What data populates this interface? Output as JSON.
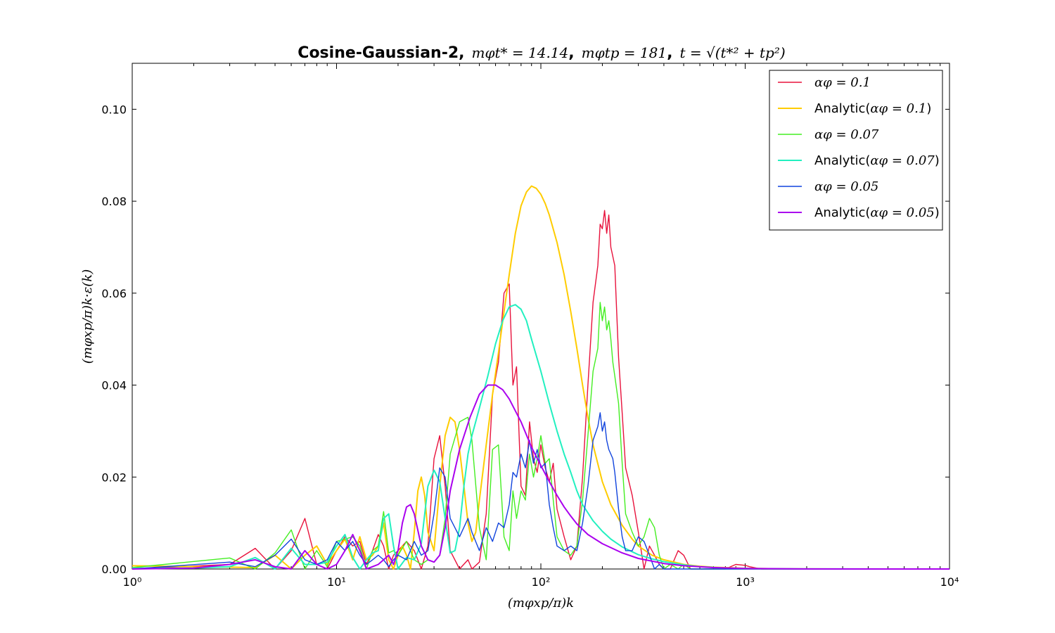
{
  "chart_data": {
    "type": "line",
    "title": {
      "bold": "Cosine-Gaussian-2,",
      "math1": "mφt* = 14.14",
      "sep1": ",",
      "math2": "mφtp = 181",
      "sep2": ",",
      "math3": "t = √(t*² + tp²)"
    },
    "xlabel": "(mφxp/π)k",
    "ylabel": "(mφxp/π)k·ε(k)",
    "xscale": "log",
    "xlim": [
      1,
      10000
    ],
    "ylim": [
      0,
      0.11
    ],
    "xticks": [
      "10⁰",
      "10¹",
      "10²",
      "10³",
      "10⁴"
    ],
    "yticks": [
      "0.00",
      "0.02",
      "0.04",
      "0.06",
      "0.08",
      "0.10"
    ],
    "legend_position": "top-right",
    "series": [
      {
        "name": "αφ = 0.1",
        "name_prefix": "",
        "name_math": "αφ = 0.1",
        "name_suffix": "",
        "color": "#e8123c",
        "width": 1.4,
        "x": [
          1,
          3,
          4,
          5,
          6,
          7,
          8,
          9,
          10,
          11,
          12,
          13,
          14,
          15,
          16,
          17,
          18,
          19,
          20,
          22,
          24,
          26,
          28,
          30,
          32,
          34,
          36,
          40,
          44,
          46,
          50,
          54,
          58,
          62,
          66,
          70,
          73,
          76,
          80,
          84,
          88,
          92,
          96,
          100,
          105,
          110,
          115,
          120,
          130,
          140,
          150,
          160,
          170,
          180,
          190,
          195,
          200,
          205,
          210,
          215,
          220,
          225,
          230,
          240,
          250,
          260,
          280,
          300,
          320,
          340,
          360,
          380,
          400,
          430,
          470,
          500,
          540,
          600,
          700,
          800,
          900,
          1000,
          1050,
          1200,
          2000,
          10000
        ],
        "y": [
          0.0,
          0.001,
          0.0045,
          0.0,
          0.004,
          0.011,
          0.001,
          0.0,
          0.004,
          0.007,
          0.005,
          0.006,
          0.001,
          0.004,
          0.0075,
          0.005,
          0.0,
          0.003,
          0.004,
          0.006,
          0.004,
          0.0,
          0.005,
          0.024,
          0.029,
          0.018,
          0.004,
          0.0,
          0.002,
          0.0,
          0.0015,
          0.012,
          0.038,
          0.045,
          0.06,
          0.062,
          0.04,
          0.044,
          0.018,
          0.016,
          0.032,
          0.024,
          0.021,
          0.027,
          0.022,
          0.019,
          0.023,
          0.013,
          0.007,
          0.002,
          0.005,
          0.02,
          0.04,
          0.058,
          0.066,
          0.075,
          0.074,
          0.078,
          0.073,
          0.077,
          0.07,
          0.068,
          0.066,
          0.046,
          0.034,
          0.022,
          0.016,
          0.008,
          0.0,
          0.005,
          0.003,
          0.001,
          0.0,
          0.0,
          0.004,
          0.003,
          0.0,
          0.0,
          0.0,
          0.0,
          0.001,
          0.0008,
          0.0005,
          0.0,
          0.0,
          0.0
        ]
      },
      {
        "name": "Analytic(αφ = 0.1)",
        "name_prefix": "Analytic(",
        "name_math": "αφ = 0.1",
        "name_suffix": ")",
        "color": "#ffcc00",
        "width": 2,
        "x": [
          1,
          2,
          3,
          4,
          5,
          6,
          7,
          8,
          9,
          10,
          11,
          12,
          13,
          14,
          15,
          16,
          17,
          18,
          19,
          20,
          21,
          22,
          23,
          24,
          25,
          26,
          27,
          28,
          30,
          32,
          34,
          36,
          38,
          40,
          42,
          44,
          46,
          48,
          50,
          54,
          58,
          62,
          66,
          70,
          75,
          80,
          85,
          90,
          95,
          100,
          105,
          110,
          120,
          130,
          140,
          150,
          160,
          170,
          180,
          200,
          220,
          250,
          280,
          300,
          350,
          400,
          450,
          500,
          600,
          700,
          800,
          1000,
          1500,
          2000,
          3000,
          10000
        ],
        "y": [
          0.0007,
          0.0005,
          0.0004,
          0.0003,
          0.003,
          0.0,
          0.003,
          0.005,
          0.001,
          0.004,
          0.0065,
          0.002,
          0.007,
          0.002,
          0.003,
          0.005,
          0.01,
          0.002,
          0.0,
          0.003,
          0.005,
          0.003,
          0.0,
          0.008,
          0.017,
          0.02,
          0.016,
          0.008,
          0.004,
          0.018,
          0.029,
          0.033,
          0.032,
          0.026,
          0.018,
          0.01,
          0.006,
          0.008,
          0.015,
          0.027,
          0.038,
          0.047,
          0.056,
          0.064,
          0.073,
          0.079,
          0.082,
          0.0833,
          0.0828,
          0.0815,
          0.0795,
          0.077,
          0.071,
          0.064,
          0.056,
          0.048,
          0.04,
          0.033,
          0.027,
          0.019,
          0.014,
          0.0095,
          0.0065,
          0.005,
          0.003,
          0.002,
          0.0015,
          0.001,
          0.0006,
          0.0004,
          0.0003,
          0.00015,
          5e-05,
          2e-05,
          0.0,
          0.0
        ]
      },
      {
        "name": "αφ = 0.07",
        "name_prefix": "",
        "name_math": "αφ = 0.07",
        "name_suffix": "",
        "color": "#44ee22",
        "width": 1.4,
        "x": [
          1,
          3,
          4,
          5,
          6,
          7,
          8,
          9,
          10,
          11,
          12,
          13,
          14,
          15,
          16,
          17,
          18,
          19,
          20,
          22,
          24,
          26,
          28,
          30,
          32,
          34,
          36,
          40,
          44,
          46,
          50,
          54,
          58,
          62,
          66,
          70,
          73,
          76,
          80,
          84,
          88,
          92,
          96,
          100,
          105,
          110,
          115,
          120,
          130,
          140,
          150,
          160,
          170,
          180,
          190,
          195,
          200,
          205,
          210,
          215,
          220,
          225,
          230,
          240,
          250,
          260,
          280,
          300,
          320,
          340,
          360,
          380,
          400,
          430,
          470,
          500,
          540,
          600,
          700,
          800,
          1000,
          2000,
          10000
        ],
        "y": [
          0.0003,
          0.0024,
          0.0,
          0.0035,
          0.0085,
          0.0,
          0.004,
          0.0005,
          0.006,
          0.0065,
          0.007,
          0.005,
          0.0,
          0.004,
          0.005,
          0.0125,
          0.0035,
          0.004,
          0.003,
          0.006,
          0.002,
          0.001,
          0.002,
          0.0015,
          0.003,
          0.011,
          0.025,
          0.032,
          0.033,
          0.028,
          0.009,
          0.002,
          0.026,
          0.027,
          0.007,
          0.004,
          0.017,
          0.011,
          0.017,
          0.015,
          0.025,
          0.02,
          0.024,
          0.029,
          0.023,
          0.024,
          0.015,
          0.007,
          0.004,
          0.003,
          0.005,
          0.015,
          0.029,
          0.043,
          0.048,
          0.058,
          0.054,
          0.057,
          0.052,
          0.054,
          0.05,
          0.045,
          0.042,
          0.036,
          0.023,
          0.012,
          0.008,
          0.005,
          0.007,
          0.011,
          0.009,
          0.003,
          0.0,
          0.001,
          0.0,
          0.001,
          0.0,
          0.0,
          0.0,
          0.0,
          0.0,
          0.0,
          0.0
        ]
      },
      {
        "name": "Analytic(αφ = 0.07)",
        "name_prefix": "Analytic(",
        "name_math": "αφ = 0.07",
        "name_suffix": ")",
        "color": "#22f0c0",
        "width": 2,
        "x": [
          1,
          2,
          3,
          4,
          5,
          6,
          7,
          8,
          9,
          10,
          11,
          12,
          13,
          14,
          15,
          16,
          17,
          18,
          19,
          20,
          22,
          24,
          26,
          28,
          30,
          32,
          34,
          36,
          38,
          40,
          42,
          44,
          46,
          50,
          55,
          60,
          65,
          70,
          75,
          80,
          85,
          90,
          100,
          110,
          120,
          130,
          140,
          150,
          160,
          180,
          200,
          220,
          250,
          300,
          350,
          400,
          500,
          600,
          800,
          1000,
          1500,
          2000,
          5000,
          10000
        ],
        "y": [
          0.0002,
          0.0002,
          0.0005,
          0.0025,
          0.0,
          0.0045,
          0.001,
          0.001,
          0.0015,
          0.005,
          0.0075,
          0.0025,
          0.0,
          0.002,
          0.0035,
          0.004,
          0.011,
          0.012,
          0.005,
          0.0,
          0.0025,
          0.002,
          0.0055,
          0.018,
          0.0215,
          0.019,
          0.011,
          0.0035,
          0.004,
          0.009,
          0.018,
          0.025,
          0.029,
          0.035,
          0.042,
          0.049,
          0.054,
          0.057,
          0.0575,
          0.0565,
          0.054,
          0.05,
          0.043,
          0.036,
          0.03,
          0.025,
          0.021,
          0.017,
          0.014,
          0.0105,
          0.0082,
          0.0065,
          0.0048,
          0.0031,
          0.0022,
          0.0016,
          0.0009,
          0.0005,
          0.0002,
          0.0001,
          4e-05,
          2e-05,
          0.0,
          0.0
        ]
      },
      {
        "name": "αφ = 0.05",
        "name_prefix": "",
        "name_math": "αφ = 0.05",
        "name_suffix": "",
        "color": "#1144dd",
        "width": 1.4,
        "x": [
          1,
          3,
          4,
          5,
          6,
          7,
          8,
          9,
          10,
          11,
          12,
          13,
          14,
          15,
          16,
          17,
          18,
          19,
          20,
          22,
          24,
          26,
          28,
          30,
          32,
          34,
          36,
          40,
          44,
          46,
          50,
          54,
          58,
          62,
          66,
          70,
          73,
          76,
          80,
          84,
          88,
          92,
          96,
          100,
          105,
          110,
          115,
          120,
          130,
          140,
          150,
          160,
          170,
          180,
          190,
          195,
          200,
          205,
          210,
          215,
          220,
          225,
          230,
          240,
          250,
          260,
          280,
          300,
          320,
          340,
          360,
          380,
          400,
          430,
          470,
          500,
          540,
          600,
          700,
          800,
          1000,
          2000,
          10000
        ],
        "y": [
          0.0,
          0.0015,
          0.0005,
          0.003,
          0.0065,
          0.002,
          0.001,
          0.002,
          0.006,
          0.004,
          0.006,
          0.003,
          0.001,
          0.002,
          0.003,
          0.002,
          0.0005,
          0.002,
          0.003,
          0.002,
          0.006,
          0.003,
          0.004,
          0.012,
          0.022,
          0.02,
          0.011,
          0.007,
          0.011,
          0.008,
          0.004,
          0.009,
          0.006,
          0.01,
          0.009,
          0.014,
          0.021,
          0.02,
          0.025,
          0.022,
          0.028,
          0.023,
          0.026,
          0.022,
          0.023,
          0.014,
          0.009,
          0.005,
          0.004,
          0.005,
          0.004,
          0.01,
          0.018,
          0.028,
          0.031,
          0.034,
          0.03,
          0.032,
          0.028,
          0.026,
          0.025,
          0.024,
          0.021,
          0.013,
          0.007,
          0.004,
          0.004,
          0.007,
          0.006,
          0.003,
          0.0,
          0.001,
          0.0,
          0.0,
          0.0,
          0.0,
          0.0,
          0.0,
          0.0,
          0.0,
          0.0,
          0.0,
          0.0
        ]
      },
      {
        "name": "Analytic(αφ = 0.05)",
        "name_prefix": "Analytic(",
        "name_math": "αφ = 0.05",
        "name_suffix": ")",
        "color": "#aa00ee",
        "width": 2,
        "x": [
          1,
          2,
          3,
          4,
          5,
          6,
          7,
          8,
          9,
          10,
          11,
          12,
          13,
          14,
          15,
          16,
          17,
          18,
          19,
          20,
          21,
          22,
          23,
          24,
          26,
          28,
          30,
          32,
          34,
          36,
          40,
          45,
          50,
          55,
          60,
          65,
          70,
          80,
          90,
          100,
          110,
          120,
          130,
          140,
          150,
          170,
          200,
          250,
          300,
          400,
          500,
          700,
          1000,
          2000,
          10000
        ],
        "y": [
          0.0,
          0.0002,
          0.001,
          0.002,
          0.0005,
          0.0,
          0.004,
          0.001,
          0.0,
          0.001,
          0.004,
          0.0075,
          0.004,
          0.0,
          0.0005,
          0.001,
          0.002,
          0.003,
          0.001,
          0.004,
          0.01,
          0.0135,
          0.014,
          0.012,
          0.005,
          0.002,
          0.0015,
          0.003,
          0.009,
          0.017,
          0.026,
          0.033,
          0.038,
          0.04,
          0.04,
          0.039,
          0.037,
          0.032,
          0.0265,
          0.0225,
          0.019,
          0.016,
          0.0135,
          0.0115,
          0.0098,
          0.0075,
          0.0055,
          0.0035,
          0.0023,
          0.0012,
          0.0007,
          0.0003,
          0.0001,
          2e-05,
          0.0
        ]
      }
    ]
  }
}
